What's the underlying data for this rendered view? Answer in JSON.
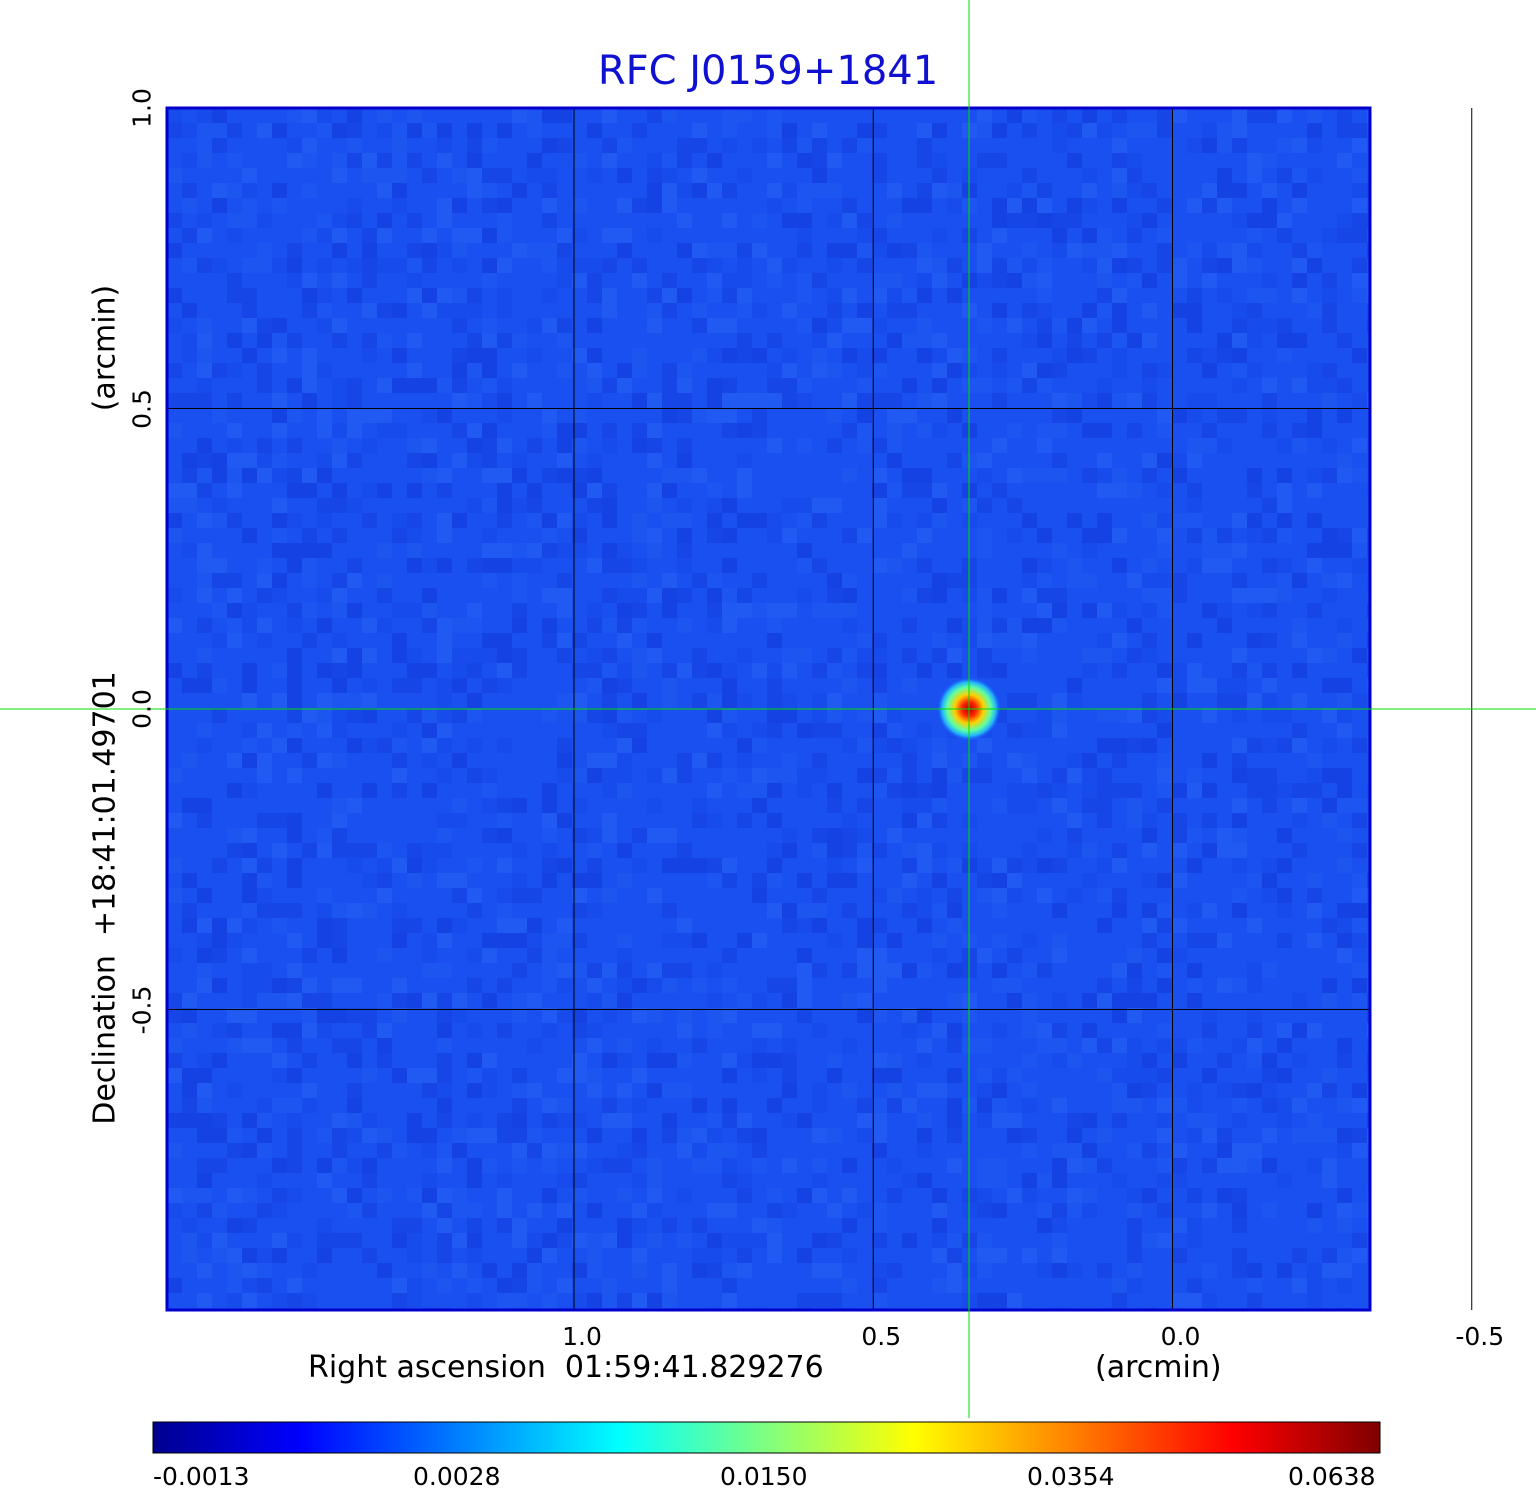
{
  "chart_data": {
    "type": "heatmap",
    "title": "RFC J0159+1841",
    "xlabel": "Right ascension  01:59:41.829276",
    "x_unit": "(arcmin)",
    "ylabel": "Declination  +18:41:01.49701",
    "y_unit": "(arcmin)",
    "x_range": [
      1.68,
      -0.33
    ],
    "y_range": [
      -1.0,
      1.0
    ],
    "x_ticks": [
      {
        "value": 1.0,
        "label": "1.0"
      },
      {
        "value": 0.5,
        "label": "0.5"
      },
      {
        "value": 0.0,
        "label": "0.0"
      },
      {
        "value": -0.5,
        "label": "-0.5"
      }
    ],
    "y_ticks": [
      {
        "value": 1.0,
        "label": "1.0"
      },
      {
        "value": 0.5,
        "label": "0.5"
      },
      {
        "value": 0.0,
        "label": "0.0"
      },
      {
        "value": -0.5,
        "label": "-0.5"
      }
    ],
    "grid": true,
    "crosshair": {
      "x": 0.34,
      "y": 0.0,
      "color": "#00dd00"
    },
    "source": {
      "x": 0.34,
      "y": 0.0,
      "peak": 0.0638
    },
    "colorbar": {
      "placement": "bottom",
      "ticks": [
        "-0.0013",
        "0.0028",
        "0.0150",
        "0.0354",
        "0.0638"
      ],
      "colormap": [
        "#00008f",
        "#0000ff",
        "#00ffff",
        "#ffff00",
        "#ff0000",
        "#800000"
      ]
    },
    "background_color": "#1a50f0"
  }
}
